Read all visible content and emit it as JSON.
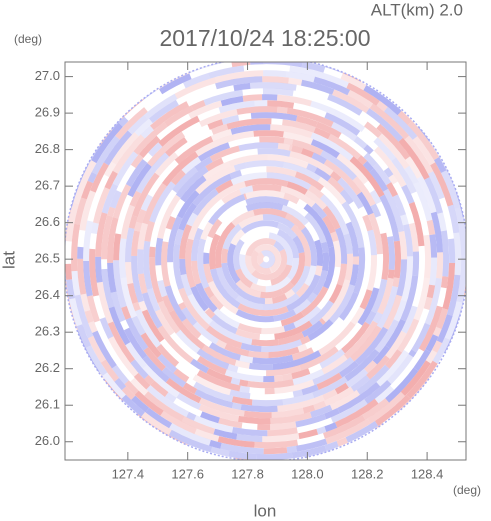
{
  "chart_data": {
    "type": "polar-scan",
    "title": "2017/10/24 18:25:00",
    "subtitle": "ALT(km) 2.0",
    "x_label": "lon",
    "y_label": "lat",
    "x_unit": "(deg)",
    "y_unit": "(deg)",
    "xlim": [
      127.19,
      128.53
    ],
    "ylim": [
      25.95,
      27.04
    ],
    "xticks": [
      127.4,
      127.6,
      127.8,
      {
        "value": 128,
        "label": "128.0"
      },
      128.2,
      128.4
    ],
    "yticks": [
      {
        "value": 26,
        "label": "26.0"
      },
      26.1,
      26.2,
      26.3,
      26.4,
      26.5,
      26.6,
      26.7,
      26.8,
      26.9,
      {
        "value": 27,
        "label": "27.0"
      }
    ],
    "center": [
      127.862,
      26.5
    ],
    "positive_color": "#f2a8a8",
    "negative_color": "#a9acf2",
    "grid": false
  }
}
